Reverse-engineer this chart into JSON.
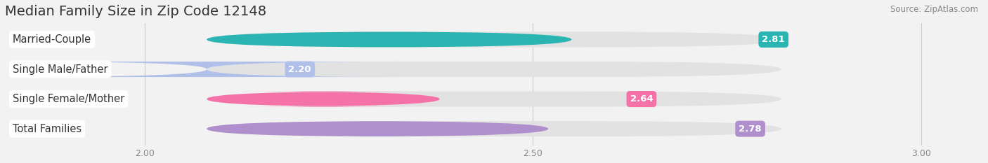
{
  "title": "Median Family Size in Zip Code 12148",
  "source": "Source: ZipAtlas.com",
  "categories": [
    "Married-Couple",
    "Single Male/Father",
    "Single Female/Mother",
    "Total Families"
  ],
  "values": [
    2.81,
    2.2,
    2.64,
    2.78
  ],
  "bar_colors": [
    "#2ab5b2",
    "#b0c0e8",
    "#f472a8",
    "#b090cc"
  ],
  "xlim_min": 1.82,
  "xlim_max": 3.08,
  "xticks": [
    2.0,
    2.5,
    3.0
  ],
  "xtick_labels": [
    "2.00",
    "2.50",
    "3.00"
  ],
  "background_color": "#f2f2f2",
  "bar_bg_color": "#e2e2e2",
  "title_fontsize": 14,
  "label_fontsize": 10.5,
  "value_fontsize": 9.5,
  "bar_height": 0.52
}
